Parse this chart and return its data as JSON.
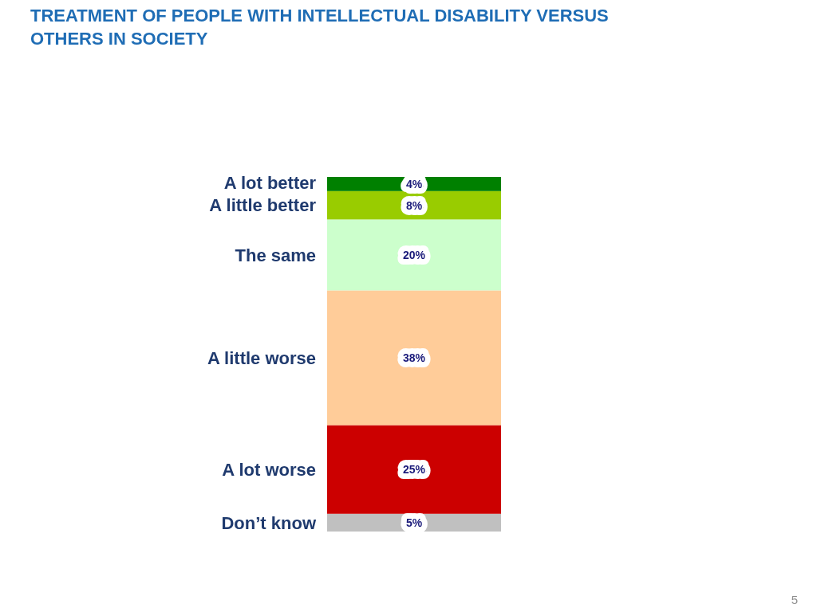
{
  "chart_data": {
    "type": "bar",
    "title": "TREATMENT OF PEOPLE WITH INTELLECTUAL DISABILITY VERSUS OTHERS IN SOCIETY",
    "categories": [
      null
    ],
    "stacked": true,
    "series": [
      {
        "name": "Don’t know",
        "color": "#c0c0c0",
        "values": [
          5
        ],
        "value_labels": [
          "5%"
        ]
      },
      {
        "name": "A lot worse",
        "color": "#cc0000",
        "values": [
          25
        ],
        "value_labels": [
          "25%"
        ]
      },
      {
        "name": "A little worse",
        "color": "#ffcc99",
        "values": [
          38
        ],
        "value_labels": [
          "38%"
        ]
      },
      {
        "name": "The same",
        "color": "#ccffcc",
        "values": [
          20
        ],
        "value_labels": [
          "20%"
        ]
      },
      {
        "name": "A little better",
        "color": "#99cc00",
        "values": [
          8
        ],
        "value_labels": [
          "8%"
        ]
      },
      {
        "name": "A lot better",
        "color": "#008000",
        "values": [
          4
        ],
        "value_labels": [
          "4%"
        ]
      }
    ],
    "annotations": [
      "5"
    ]
  }
}
